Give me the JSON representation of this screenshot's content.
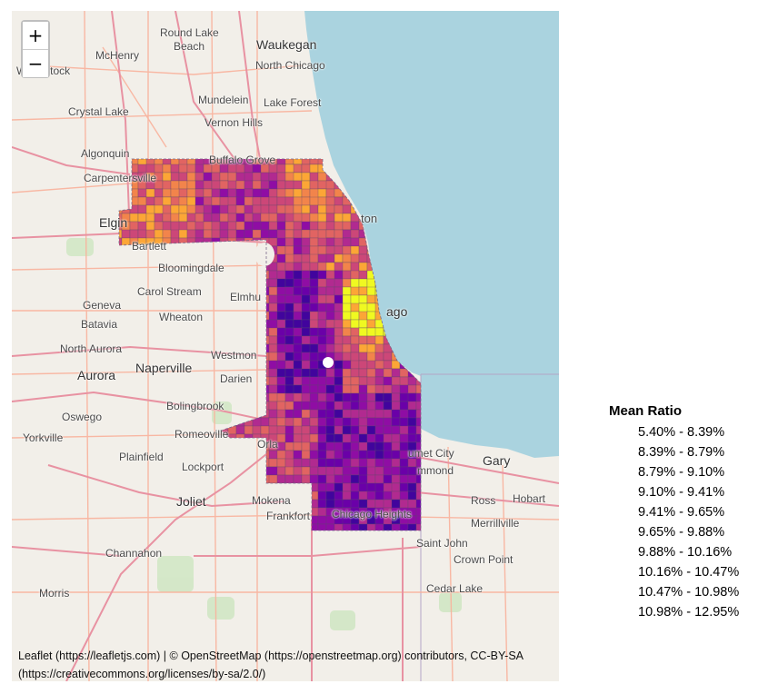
{
  "map": {
    "zoom_in_label": "+",
    "zoom_out_label": "−",
    "places": {
      "round_lake_beach_1": "Round Lake",
      "round_lake_beach_2": "Beach",
      "waukegan": "Waukegan",
      "mchenry": "McHenry",
      "north_chicago": "North Chicago",
      "woodstock": "Woodstock",
      "mundelein": "Mundelein",
      "lake_forest": "Lake Forest",
      "crystal_lake": "Crystal Lake",
      "vernon_hills": "Vernon Hills",
      "algonquin": "Algonquin",
      "buffalo_grove": "Buffalo Grove",
      "carpentersville": "Carpentersville",
      "elgin": "Elgin",
      "bartlett": "Bartlett",
      "evanston_fragment": "ton",
      "bloomingdale": "Bloomingdale",
      "geneva": "Geneva",
      "carol_stream": "Carol Stream",
      "elmhurst": "Elmhu",
      "chicago_fragment": "ago",
      "batavia": "Batavia",
      "wheaton": "Wheaton",
      "north_aurora": "North Aurora",
      "westmont": "Westmon",
      "aurora": "Aurora",
      "naperville": "Naperville",
      "darien": "Darien",
      "bolingbrook": "Bolingbrook",
      "oswego": "Oswego",
      "yorkville": "Yorkville",
      "romeoville": "Romeoville",
      "orland_fragment": "Orla",
      "plainfield": "Plainfield",
      "calumet_city": "umet City",
      "hammond": "mmond",
      "gary": "Gary",
      "lockport": "Lockport",
      "joliet": "Joliet",
      "mokena": "Mokena",
      "ross": "Ross",
      "hobart": "Hobart",
      "frankfort": "Frankfort",
      "chicago_heights": "Chicago Heights",
      "merrillville": "Merrillville",
      "channahon": "Channahon",
      "saint_john": "Saint John",
      "crown_point": "Crown Point",
      "cedar_lake": "Cedar Lake",
      "morris": "Morris"
    },
    "colors": {
      "land": "#f2efe9",
      "water": "#aad3df",
      "road_major": "#e892a2",
      "road_minor": "#f9b29c",
      "boundary": "#b4a5c6",
      "park": "#cde6c0"
    },
    "choropleth_palette": [
      "#0d0887",
      "#41049d",
      "#6a00a8",
      "#8f0da4",
      "#b12a90",
      "#cc4778",
      "#e16462",
      "#f2844b",
      "#fca636",
      "#f0f921"
    ],
    "attribution": {
      "line1": "Leaflet (https://leafletjs.com) | © OpenStreetMap (https://openstreetmap.org) contributors, CC-BY-SA",
      "line2": "(https://creativecommons.org/licenses/by-sa/2.0/)"
    }
  },
  "legend": {
    "title": "Mean Ratio",
    "items": [
      "5.40% - 8.39%",
      "8.39% - 8.79%",
      "8.79% - 9.10%",
      "9.10% - 9.41%",
      "9.41% - 9.65%",
      "9.65% - 9.88%",
      "9.88% - 10.16%",
      "10.16% - 10.47%",
      "10.47% - 10.98%",
      "10.98% - 12.95%"
    ]
  }
}
